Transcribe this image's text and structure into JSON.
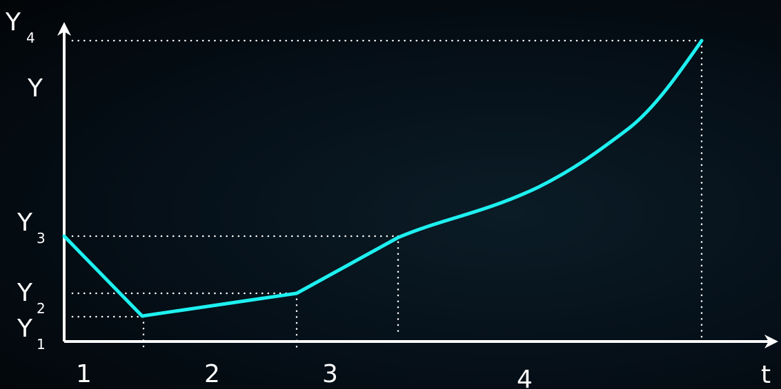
{
  "diagram": {
    "curve_color": "#1ef0f0",
    "axis_color": "#ffffff",
    "guide_color": "#ffffff",
    "background_color": "#041018",
    "axis_labels": {
      "y": "Y",
      "x": "t"
    },
    "y_levels": [
      {
        "base": "Y",
        "sub": "4"
      },
      {
        "base": "Y",
        "sub": "3"
      },
      {
        "base": "Y",
        "sub": "2"
      },
      {
        "base": "Y",
        "sub": "1"
      }
    ],
    "segments": [
      "1",
      "2",
      "3",
      "4"
    ]
  }
}
